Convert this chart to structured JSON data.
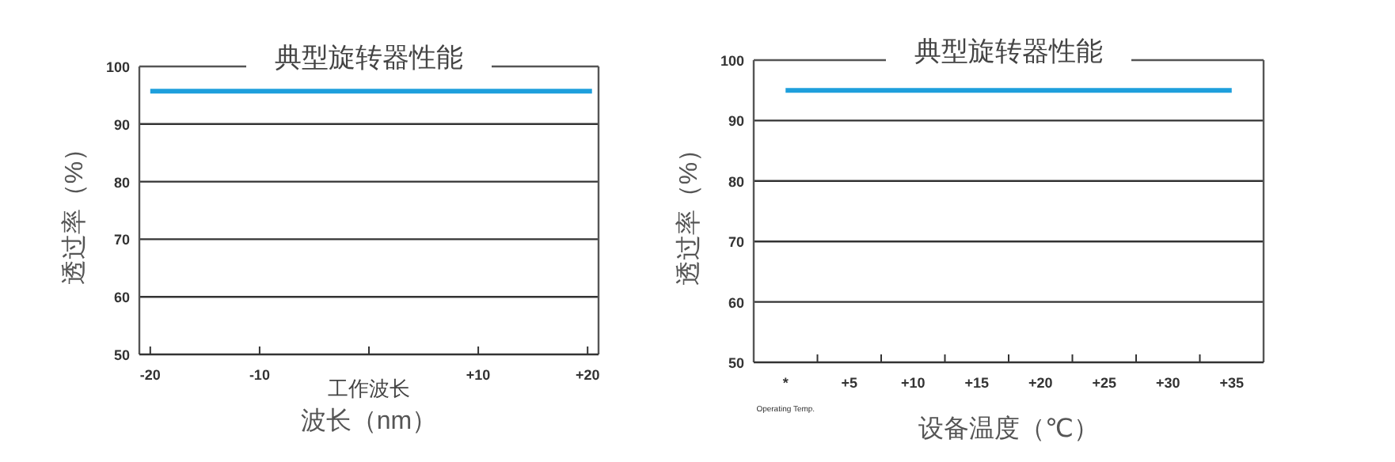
{
  "chart_data": [
    {
      "type": "line",
      "title": "典型旋转器性能",
      "xlabel": "波长（nm）",
      "ylabel": "透过率（%）",
      "annotations": [
        "工作波长"
      ],
      "xlim": [
        -21,
        21
      ],
      "xticks": [
        -20,
        -10,
        {
          "value": 0,
          "label": null
        },
        {
          "value": 10,
          "label": "+10"
        },
        {
          "value": 20,
          "label": "+20"
        }
      ],
      "ylim": [
        50,
        100
      ],
      "yticks": [
        50,
        60,
        70,
        80,
        90,
        100
      ],
      "grid": "y",
      "series": [
        {
          "color": "#1e9fdc",
          "x": [
            -20,
            20.4
          ],
          "values": [
            95.7,
            95.7
          ]
        }
      ]
    },
    {
      "type": "line",
      "title": "典型旋转器性能",
      "xlabel": "设备温度（℃）",
      "ylabel": "透过率（%）",
      "annotations": [
        "Operating Temp."
      ],
      "categories": [
        "*",
        "+5",
        "+10",
        "+15",
        "+20",
        "+25",
        "+30",
        "+35"
      ],
      "ylim": [
        50,
        100
      ],
      "yticks": [
        50,
        60,
        70,
        80,
        90,
        100
      ],
      "grid": "y",
      "series": [
        {
          "color": "#1e9fdc",
          "values": [
            95,
            95,
            95,
            95,
            95,
            95,
            95,
            95
          ]
        }
      ]
    }
  ]
}
